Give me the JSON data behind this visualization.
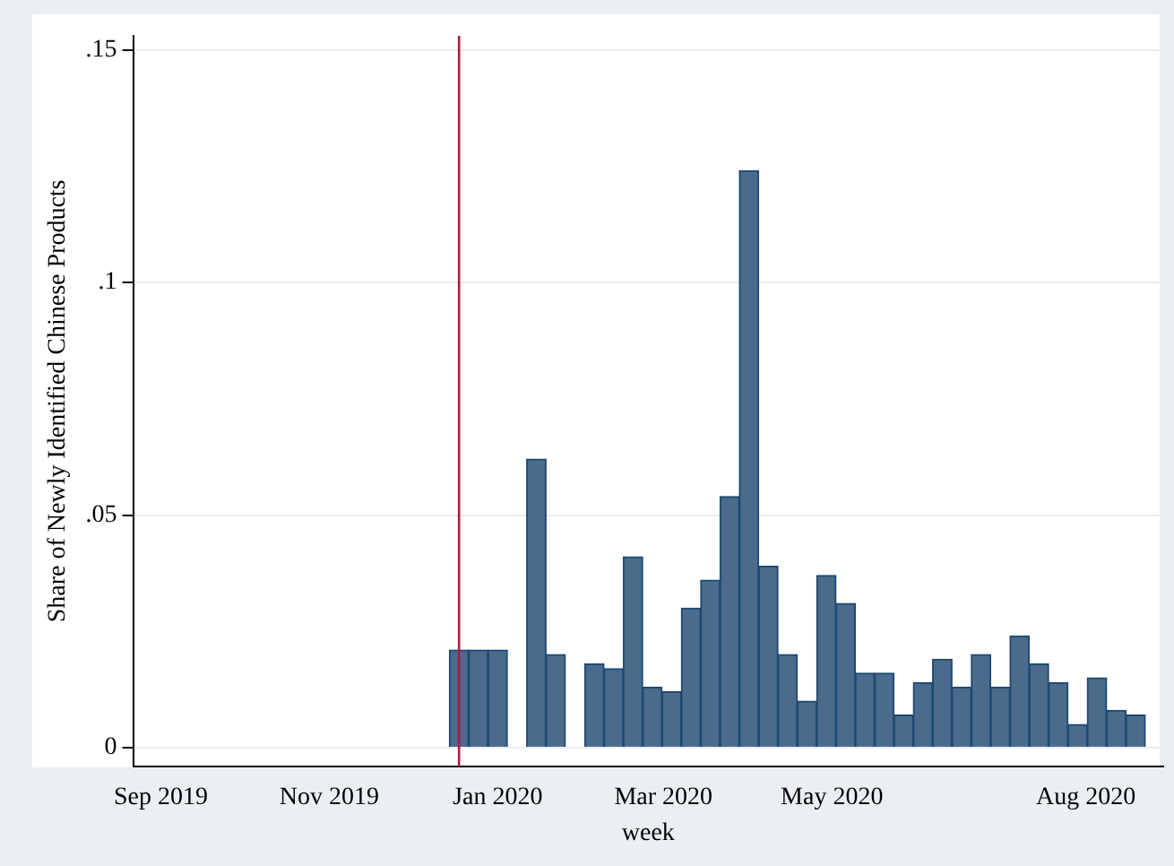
{
  "chart_data": {
    "type": "bar",
    "xlabel": "week",
    "ylabel": "Share of Newly Identified Chinese Products",
    "x": [
      "2019-12-18",
      "2019-12-25",
      "2020-01-01",
      "2020-01-15",
      "2020-01-22",
      "2020-02-05",
      "2020-02-12",
      "2020-02-19",
      "2020-02-26",
      "2020-03-04",
      "2020-03-11",
      "2020-03-18",
      "2020-03-25",
      "2020-04-01",
      "2020-04-08",
      "2020-04-15",
      "2020-04-22",
      "2020-04-29",
      "2020-05-06",
      "2020-05-13",
      "2020-05-20",
      "2020-05-27",
      "2020-06-03",
      "2020-06-10",
      "2020-06-17",
      "2020-06-24",
      "2020-07-01",
      "2020-07-08",
      "2020-07-15",
      "2020-07-22",
      "2020-07-29",
      "2020-08-05",
      "2020-08-12",
      "2020-08-19"
    ],
    "values": [
      0.021,
      0.021,
      0.021,
      0.062,
      0.02,
      0.018,
      0.017,
      0.041,
      0.013,
      0.012,
      0.03,
      0.036,
      0.054,
      0.124,
      0.039,
      0.02,
      0.01,
      0.037,
      0.031,
      0.016,
      0.016,
      0.007,
      0.014,
      0.019,
      0.013,
      0.02,
      0.013,
      0.024,
      0.018,
      0.014,
      0.005,
      0.015,
      0.008,
      0.007
    ],
    "color": "#4a6b8c",
    "xlim": [
      "2019-08-22",
      "2020-08-29"
    ],
    "xticks": [
      {
        "value": "2019-09-01",
        "label": "Sep 2019"
      },
      {
        "value": "2019-11-01",
        "label": "Nov 2019"
      },
      {
        "value": "2020-01-01",
        "label": "Jan 2020"
      },
      {
        "value": "2020-03-01",
        "label": "Mar 2020"
      },
      {
        "value": "2020-05-01",
        "label": "May 2020"
      },
      {
        "value": "2020-08-01",
        "label": "Aug 2020"
      }
    ],
    "ylim": [
      -0.004,
      0.153
    ],
    "yticks": [
      {
        "value": 0,
        "label": "0"
      },
      {
        "value": 0.05,
        "label": ".05"
      },
      {
        "value": 0.1,
        "label": ".1"
      },
      {
        "value": 0.15,
        "label": ".15"
      }
    ],
    "grid": "y",
    "legend": false,
    "ref_lines": [
      {
        "axis": "x",
        "value": "2019-12-18",
        "label": null,
        "color": "#b0183e"
      }
    ]
  }
}
